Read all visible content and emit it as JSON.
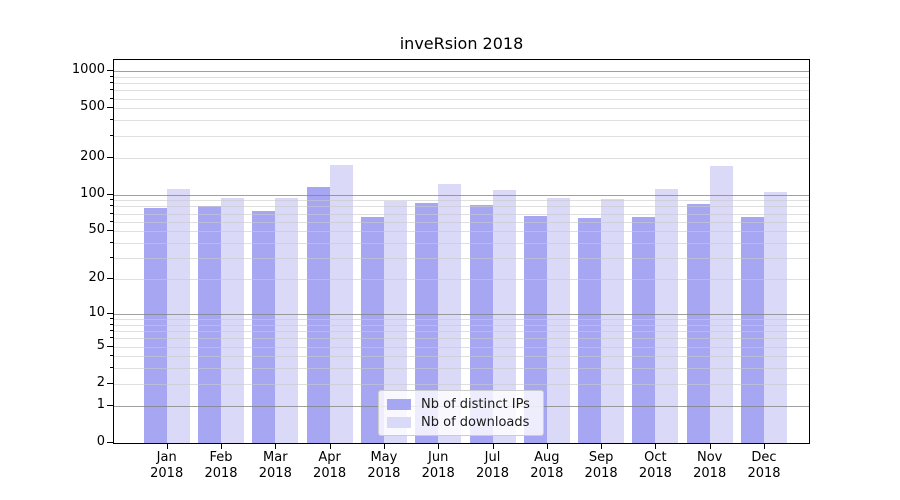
{
  "chart_data": {
    "type": "bar",
    "title": "inveRsion 2018",
    "categories": [
      "Jan",
      "Feb",
      "Mar",
      "Apr",
      "May",
      "Jun",
      "Jul",
      "Aug",
      "Sep",
      "Oct",
      "Nov",
      "Dec"
    ],
    "xtick_year": "2018",
    "series": [
      {
        "name": "Nb of distinct IPs",
        "color": "#a6a6f2",
        "values": [
          77,
          81,
          74,
          116,
          66,
          86,
          83,
          67,
          64,
          65,
          84,
          66
        ]
      },
      {
        "name": "Nb of downloads",
        "color": "#dadaf8",
        "values": [
          111,
          93,
          94,
          174,
          89,
          123,
          109,
          94,
          92,
          112,
          170,
          105
        ]
      }
    ],
    "yscale": "log10(value+1)",
    "yticks": [
      0,
      1,
      2,
      5,
      10,
      20,
      50,
      100,
      200,
      500,
      1000
    ],
    "minor_gridline_values": [
      2,
      3,
      4,
      5,
      6,
      7,
      8,
      9,
      20,
      30,
      40,
      50,
      60,
      70,
      80,
      90,
      200,
      300,
      400,
      500,
      600,
      700,
      800,
      900
    ],
    "major_gridline_values": [
      1,
      10,
      100,
      1000
    ],
    "ylim": [
      0,
      1230
    ],
    "grid": true,
    "legend_position": "inside-bottom-center",
    "colors": {
      "grid_major": "#808080",
      "grid_minor": "#c9c9c9",
      "axis": "#000000",
      "background": "#ffffff"
    }
  }
}
